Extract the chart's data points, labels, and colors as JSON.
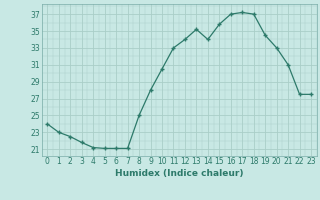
{
  "x": [
    0,
    1,
    2,
    3,
    4,
    5,
    6,
    7,
    8,
    9,
    10,
    11,
    12,
    13,
    14,
    15,
    16,
    17,
    18,
    19,
    20,
    21,
    22,
    23
  ],
  "y": [
    24.0,
    23.0,
    22.5,
    21.8,
    21.2,
    21.1,
    21.1,
    21.1,
    25.0,
    28.0,
    30.5,
    33.0,
    34.0,
    35.2,
    34.0,
    35.8,
    37.0,
    37.2,
    37.0,
    34.5,
    33.0,
    31.0,
    27.5,
    27.5
  ],
  "line_color": "#2d7a6a",
  "marker": "+",
  "marker_size": 3.5,
  "marker_lw": 1.0,
  "bg_color": "#c8e8e4",
  "grid_color_major": "#aacec8",
  "grid_color_minor": "#aacec8",
  "xlabel": "Humidex (Indice chaleur)",
  "yticks": [
    21,
    23,
    25,
    27,
    29,
    31,
    33,
    35,
    37
  ],
  "xlim": [
    -0.5,
    23.5
  ],
  "ylim": [
    20.2,
    38.2
  ],
  "xlabel_fontsize": 6.5,
  "tick_fontsize": 5.5
}
